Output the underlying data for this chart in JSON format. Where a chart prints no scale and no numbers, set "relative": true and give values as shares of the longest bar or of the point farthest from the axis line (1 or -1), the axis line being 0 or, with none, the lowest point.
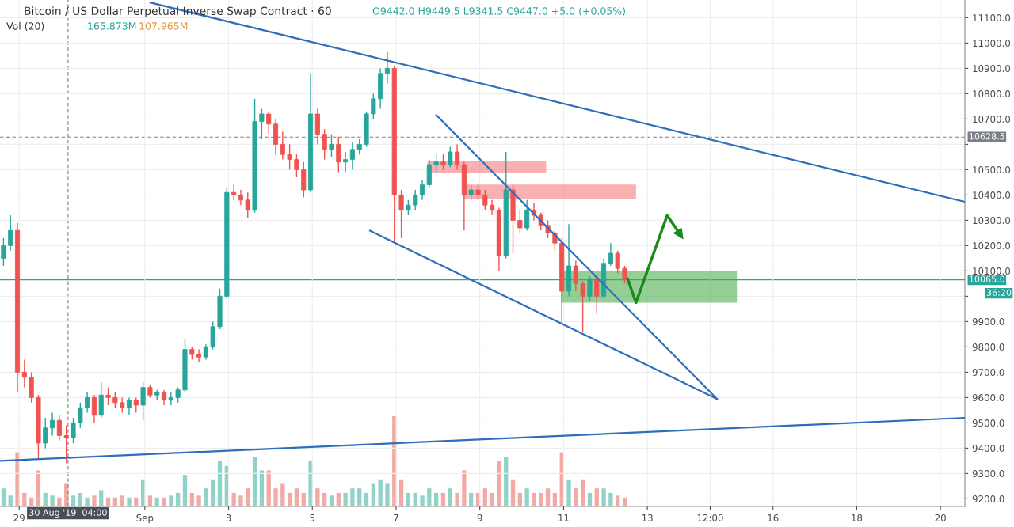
{
  "chart_data": [
    {
      "type": "candlestick",
      "title": "Bitcoin / US Dollar Perpetual Inverse Swap Contract · 60",
      "annotations": [
        "O9442.0 H9449.5 L9341.5 C9447.0 +5.0 (+0.05%)",
        "Vol (20)",
        "165.873M",
        "107.965M",
        "36:20"
      ],
      "x": [
        "2019-08-28T15:00",
        "2019-08-28T19:00",
        "2019-08-28T23:00",
        "2019-08-29T03:00",
        "2019-08-29T07:00",
        "2019-08-29T11:00",
        "2019-08-29T15:00",
        "2019-08-29T19:00",
        "2019-08-29T23:00",
        "2019-08-30T03:00",
        "2019-08-30T07:00",
        "2019-08-30T11:00",
        "2019-08-30T15:00",
        "2019-08-30T19:00",
        "2019-08-30T23:00",
        "2019-08-31T03:00",
        "2019-08-31T07:00",
        "2019-08-31T11:00",
        "2019-08-31T15:00",
        "2019-08-31T19:00",
        "2019-08-31T23:00",
        "2019-09-01T03:00",
        "2019-09-01T07:00",
        "2019-09-01T11:00",
        "2019-09-01T15:00",
        "2019-09-01T19:00",
        "2019-09-01T23:00",
        "2019-09-02T03:00",
        "2019-09-02T07:00",
        "2019-09-02T11:00",
        "2019-09-02T15:00",
        "2019-09-02T19:00",
        "2019-09-02T23:00",
        "2019-09-03T03:00",
        "2019-09-03T07:00",
        "2019-09-03T11:00",
        "2019-09-03T15:00",
        "2019-09-03T19:00",
        "2019-09-03T23:00",
        "2019-09-04T03:00",
        "2019-09-04T07:00",
        "2019-09-04T11:00",
        "2019-09-04T15:00",
        "2019-09-04T19:00",
        "2019-09-04T23:00",
        "2019-09-05T03:00",
        "2019-09-05T07:00",
        "2019-09-05T11:00",
        "2019-09-05T15:00",
        "2019-09-05T19:00",
        "2019-09-05T23:00",
        "2019-09-06T03:00",
        "2019-09-06T07:00",
        "2019-09-06T11:00",
        "2019-09-06T15:00",
        "2019-09-06T19:00",
        "2019-09-06T23:00",
        "2019-09-07T03:00",
        "2019-09-07T07:00",
        "2019-09-07T11:00",
        "2019-09-07T15:00",
        "2019-09-07T19:00",
        "2019-09-07T23:00",
        "2019-09-08T03:00",
        "2019-09-08T07:00",
        "2019-09-08T11:00",
        "2019-09-08T15:00",
        "2019-09-08T19:00",
        "2019-09-08T23:00",
        "2019-09-09T03:00",
        "2019-09-09T07:00",
        "2019-09-09T11:00",
        "2019-09-09T15:00",
        "2019-09-09T19:00",
        "2019-09-09T23:00",
        "2019-09-10T03:00",
        "2019-09-10T07:00",
        "2019-09-10T11:00",
        "2019-09-10T15:00",
        "2019-09-10T19:00",
        "2019-09-10T23:00",
        "2019-09-11T03:00",
        "2019-09-11T07:00",
        "2019-09-11T11:00",
        "2019-09-11T15:00",
        "2019-09-11T19:00",
        "2019-09-11T23:00",
        "2019-09-12T03:00",
        "2019-09-12T07:00",
        "2019-09-12T11:00"
      ],
      "ohlc": [
        [
          10150,
          10230,
          10120,
          10200
        ],
        [
          10200,
          10320,
          10180,
          10260
        ],
        [
          10260,
          10290,
          9620,
          9700
        ],
        [
          9700,
          9750,
          9640,
          9680
        ],
        [
          9680,
          9700,
          9580,
          9600
        ],
        [
          9600,
          9610,
          9360,
          9420
        ],
        [
          9420,
          9520,
          9400,
          9480
        ],
        [
          9480,
          9540,
          9450,
          9510
        ],
        [
          9510,
          9530,
          9430,
          9450
        ],
        [
          9450,
          9490,
          9340,
          9440
        ],
        [
          9440,
          9520,
          9420,
          9500
        ],
        [
          9500,
          9580,
          9480,
          9560
        ],
        [
          9560,
          9620,
          9540,
          9600
        ],
        [
          9600,
          9610,
          9500,
          9530
        ],
        [
          9530,
          9660,
          9520,
          9610
        ],
        [
          9610,
          9640,
          9570,
          9600
        ],
        [
          9600,
          9620,
          9560,
          9580
        ],
        [
          9580,
          9600,
          9540,
          9560
        ],
        [
          9560,
          9600,
          9530,
          9590
        ],
        [
          9590,
          9600,
          9540,
          9570
        ],
        [
          9570,
          9660,
          9510,
          9640
        ],
        [
          9640,
          9650,
          9600,
          9610
        ],
        [
          9610,
          9630,
          9590,
          9620
        ],
        [
          9620,
          9630,
          9570,
          9590
        ],
        [
          9590,
          9620,
          9570,
          9600
        ],
        [
          9600,
          9640,
          9580,
          9630
        ],
        [
          9630,
          9830,
          9620,
          9790
        ],
        [
          9790,
          9800,
          9750,
          9770
        ],
        [
          9770,
          9790,
          9740,
          9760
        ],
        [
          9760,
          9810,
          9750,
          9800
        ],
        [
          9800,
          9900,
          9790,
          9880
        ],
        [
          9880,
          10030,
          9870,
          10000
        ],
        [
          10000,
          10430,
          9990,
          10410
        ],
        [
          10410,
          10440,
          10380,
          10400
        ],
        [
          10400,
          10420,
          10360,
          10380
        ],
        [
          10380,
          10410,
          10310,
          10340
        ],
        [
          10340,
          10780,
          10330,
          10690
        ],
        [
          10690,
          10740,
          10620,
          10720
        ],
        [
          10720,
          10730,
          10640,
          10680
        ],
        [
          10680,
          10700,
          10560,
          10600
        ],
        [
          10600,
          10650,
          10540,
          10560
        ],
        [
          10560,
          10600,
          10500,
          10540
        ],
        [
          10540,
          10560,
          10470,
          10500
        ],
        [
          10500,
          10530,
          10390,
          10420
        ],
        [
          10420,
          10880,
          10410,
          10720
        ],
        [
          10720,
          10740,
          10600,
          10640
        ],
        [
          10640,
          10660,
          10540,
          10580
        ],
        [
          10580,
          10640,
          10550,
          10600
        ],
        [
          10600,
          10630,
          10490,
          10530
        ],
        [
          10530,
          10570,
          10490,
          10540
        ],
        [
          10540,
          10610,
          10500,
          10580
        ],
        [
          10580,
          10620,
          10560,
          10600
        ],
        [
          10600,
          10730,
          10590,
          10720
        ],
        [
          10720,
          10800,
          10700,
          10780
        ],
        [
          10780,
          10900,
          10740,
          10880
        ],
        [
          10880,
          10965,
          10840,
          10900
        ],
        [
          10900,
          10910,
          10220,
          10400
        ],
        [
          10400,
          10420,
          10230,
          10340
        ],
        [
          10340,
          10380,
          10320,
          10360
        ],
        [
          10360,
          10420,
          10340,
          10400
        ],
        [
          10400,
          10460,
          10380,
          10440
        ],
        [
          10440,
          10540,
          10430,
          10520
        ],
        [
          10520,
          10560,
          10490,
          10530
        ],
        [
          10530,
          10560,
          10500,
          10520
        ],
        [
          10520,
          10590,
          10510,
          10570
        ],
        [
          10570,
          10600,
          10500,
          10520
        ],
        [
          10520,
          10530,
          10260,
          10400
        ],
        [
          10400,
          10440,
          10380,
          10420
        ],
        [
          10420,
          10440,
          10380,
          10400
        ],
        [
          10400,
          10420,
          10340,
          10360
        ],
        [
          10360,
          10380,
          10320,
          10340
        ],
        [
          10340,
          10350,
          10100,
          10160
        ],
        [
          10160,
          10570,
          10150,
          10420
        ],
        [
          10420,
          10440,
          10170,
          10300
        ],
        [
          10300,
          10340,
          10250,
          10270
        ],
        [
          10270,
          10380,
          10260,
          10340
        ],
        [
          10340,
          10370,
          10300,
          10320
        ],
        [
          10320,
          10330,
          10260,
          10280
        ],
        [
          10280,
          10300,
          10230,
          10250
        ],
        [
          10250,
          10260,
          10180,
          10210
        ],
        [
          10210,
          10230,
          9895,
          10020
        ],
        [
          10020,
          10285,
          10000,
          10120
        ],
        [
          10120,
          10140,
          10020,
          10050
        ],
        [
          10050,
          10060,
          9860,
          10000
        ],
        [
          10000,
          10080,
          9980,
          10070
        ],
        [
          10070,
          10080,
          9930,
          10000
        ],
        [
          10000,
          10150,
          9990,
          10130
        ],
        [
          10130,
          10210,
          10120,
          10170
        ],
        [
          10170,
          10180,
          10090,
          10110
        ],
        [
          10110,
          10120,
          10050,
          10065
        ]
      ],
      "colors": [
        "#26a69a",
        "#26a69a",
        "#ef5350",
        "#ef5350",
        "#ef5350",
        "#ef5350",
        "#26a69a",
        "#26a69a",
        "#ef5350",
        "#ef5350",
        "#26a69a",
        "#26a69a",
        "#26a69a",
        "#ef5350",
        "#26a69a",
        "#ef5350",
        "#ef5350",
        "#ef5350",
        "#26a69a",
        "#ef5350",
        "#26a69a",
        "#ef5350",
        "#26a69a",
        "#ef5350",
        "#26a69a",
        "#26a69a",
        "#26a69a",
        "#ef5350",
        "#ef5350",
        "#26a69a",
        "#26a69a",
        "#26a69a",
        "#26a69a",
        "#ef5350",
        "#ef5350",
        "#ef5350",
        "#26a69a",
        "#26a69a",
        "#ef5350",
        "#ef5350",
        "#ef5350",
        "#ef5350",
        "#ef5350",
        "#ef5350",
        "#26a69a",
        "#ef5350",
        "#ef5350",
        "#26a69a",
        "#ef5350",
        "#26a69a",
        "#26a69a",
        "#26a69a",
        "#26a69a",
        "#26a69a",
        "#26a69a",
        "#26a69a",
        "#ef5350",
        "#ef5350",
        "#26a69a",
        "#26a69a",
        "#26a69a",
        "#26a69a",
        "#26a69a",
        "#ef5350",
        "#26a69a",
        "#ef5350",
        "#ef5350",
        "#26a69a",
        "#ef5350",
        "#ef5350",
        "#ef5350",
        "#ef5350",
        "#26a69a",
        "#ef5350",
        "#ef5350",
        "#26a69a",
        "#ef5350",
        "#ef5350",
        "#ef5350",
        "#ef5350",
        "#ef5350",
        "#26a69a",
        "#ef5350",
        "#ef5350",
        "#26a69a",
        "#ef5350",
        "#26a69a",
        "#26a69a",
        "#ef5350",
        "#ef5350"
      ],
      "series": [
        {
          "type": "line",
          "color": "#2f6eba",
          "x": [
            "2019-09-01T03:00",
            "2019-09-20T14:00"
          ],
          "values": [
            11160,
            10373
          ]
        },
        {
          "type": "line",
          "color": "#2f6eba",
          "x": [
            "2019-08-28T13:00",
            "2019-09-20T14:00"
          ],
          "values": [
            9350,
            9520
          ]
        },
        {
          "type": "line",
          "color": "#2f6eba",
          "x": [
            "2019-09-06T09:00",
            "2019-09-14T16:00"
          ],
          "values": [
            10259,
            9594
          ]
        },
        {
          "type": "line",
          "color": "#2f6eba",
          "x": [
            "2019-09-07T23:00",
            "2019-09-14T16:00"
          ],
          "values": [
            10716,
            9594
          ]
        },
        {
          "type": "line",
          "color": "#f47c7c",
          "x": [
            "2019-09-07T18:00",
            "2019-09-10T14:00"
          ],
          "values": [
            null,
            null
          ],
          "lower": [
            10488,
            10488
          ],
          "upper": [
            10534,
            10534
          ]
        },
        {
          "type": "line",
          "color": "#f47c7c",
          "x": [
            "2019-09-08T14:30",
            "2019-09-12T17:30"
          ],
          "values": [
            null,
            null
          ],
          "lower": [
            10384,
            10384
          ],
          "upper": [
            10441,
            10441
          ]
        },
        {
          "type": "line",
          "color": "#4caf50",
          "x": [
            "2019-09-10T22:30",
            "2019-09-15T03:20"
          ],
          "values": [
            null,
            null
          ],
          "lower": [
            9975,
            9975
          ],
          "upper": [
            10100,
            10100
          ]
        },
        {
          "type": "line",
          "color": "#1b8a1b",
          "x": [
            "2019-09-12T12:40",
            "2019-09-12T17:30",
            "2019-09-13T11:20",
            "2019-09-13T19:30"
          ],
          "values": [
            10069,
            9975,
            10319,
            10237
          ]
        }
      ],
      "ref_lines": [
        {
          "axis": "y",
          "value": 10628.5,
          "label": "10628.5",
          "color": "#7a7e87",
          "line_style": "dashed"
        },
        {
          "axis": "y",
          "value": 10065,
          "label": "10065.0",
          "color": "#26a69a",
          "line_style": "solid"
        },
        {
          "axis": "x",
          "value": "2019-08-30T04:00",
          "label": "30 Aug '19  04:00",
          "color": "#7a7e87",
          "line_style": "dashed"
        }
      ],
      "xlim": [
        "2019-08-28T13:00",
        "2019-09-20T14:00"
      ],
      "xticks": [
        {
          "value": "2019-08-29",
          "label": "29"
        },
        {
          "value": "2019-09-01",
          "label": "Sep"
        },
        {
          "value": "2019-09-03",
          "label": "3"
        },
        {
          "value": "2019-09-05",
          "label": "5"
        },
        {
          "value": "2019-09-07",
          "label": "7"
        },
        {
          "value": "2019-09-09",
          "label": "9"
        },
        {
          "value": "2019-09-11",
          "label": "11"
        },
        {
          "value": "2019-09-13",
          "label": "13"
        },
        {
          "value": "2019-09-14T12:00",
          "label": "12:00"
        },
        {
          "value": "2019-09-16",
          "label": "16"
        },
        {
          "value": "2019-09-18",
          "label": "18"
        },
        {
          "value": "2019-09-20",
          "label": "20"
        }
      ],
      "ylim": [
        9170,
        11170
      ],
      "yticks": [
        {
          "value": 9200,
          "label": "9200.0"
        },
        {
          "value": 9300,
          "label": "9300.0"
        },
        {
          "value": 9400,
          "label": "9400.0"
        },
        {
          "value": 9500,
          "label": "9500.0"
        },
        {
          "value": 9600,
          "label": "9600.0"
        },
        {
          "value": 9700,
          "label": "9700.0"
        },
        {
          "value": 9800,
          "label": "9800.0"
        },
        {
          "value": 9900,
          "label": "9900.0"
        },
        {
          "value": 10000,
          "label": null
        },
        {
          "value": 10100,
          "label": "10100.0"
        },
        {
          "value": 10200,
          "label": "10200.0"
        },
        {
          "value": 10300,
          "label": "10300.0"
        },
        {
          "value": 10400,
          "label": "10400.0"
        },
        {
          "value": 10500,
          "label": "10500.0"
        },
        {
          "value": 10600,
          "label": null
        },
        {
          "value": 10700,
          "label": "10700.0"
        },
        {
          "value": 10800,
          "label": "10800.0"
        },
        {
          "value": 10900,
          "label": "10900.0"
        },
        {
          "value": 11000,
          "label": "11000.0"
        },
        {
          "value": 11100,
          "label": "11100.0"
        }
      ],
      "grid": true
    },
    {
      "type": "bar",
      "relative": true,
      "tick_labels": false,
      "x": [
        "2019-08-28T15:00",
        "2019-08-28T19:00",
        "2019-08-28T23:00",
        "2019-08-29T03:00",
        "2019-08-29T07:00",
        "2019-08-29T11:00",
        "2019-08-29T15:00",
        "2019-08-29T19:00",
        "2019-08-29T23:00",
        "2019-08-30T03:00",
        "2019-08-30T07:00",
        "2019-08-30T11:00",
        "2019-08-30T15:00",
        "2019-08-30T19:00",
        "2019-08-30T23:00",
        "2019-08-31T03:00",
        "2019-08-31T07:00",
        "2019-08-31T11:00",
        "2019-08-31T15:00",
        "2019-08-31T19:00",
        "2019-08-31T23:00",
        "2019-09-01T03:00",
        "2019-09-01T07:00",
        "2019-09-01T11:00",
        "2019-09-01T15:00",
        "2019-09-01T19:00",
        "2019-09-01T23:00",
        "2019-09-02T03:00",
        "2019-09-02T07:00",
        "2019-09-02T11:00",
        "2019-09-02T15:00",
        "2019-09-02T19:00",
        "2019-09-02T23:00",
        "2019-09-03T03:00",
        "2019-09-03T07:00",
        "2019-09-03T11:00",
        "2019-09-03T15:00",
        "2019-09-03T19:00",
        "2019-09-03T23:00",
        "2019-09-04T03:00",
        "2019-09-04T07:00",
        "2019-09-04T11:00",
        "2019-09-04T15:00",
        "2019-09-04T19:00",
        "2019-09-04T23:00",
        "2019-09-05T03:00",
        "2019-09-05T07:00",
        "2019-09-05T11:00",
        "2019-09-05T15:00",
        "2019-09-05T19:00",
        "2019-09-05T23:00",
        "2019-09-06T03:00",
        "2019-09-06T07:00",
        "2019-09-06T11:00",
        "2019-09-06T15:00",
        "2019-09-06T19:00",
        "2019-09-06T23:00",
        "2019-09-07T03:00",
        "2019-09-07T07:00",
        "2019-09-07T11:00",
        "2019-09-07T15:00",
        "2019-09-07T19:00",
        "2019-09-07T23:00",
        "2019-09-08T03:00",
        "2019-09-08T07:00",
        "2019-09-08T11:00",
        "2019-09-08T15:00",
        "2019-09-08T19:00",
        "2019-09-08T23:00",
        "2019-09-09T03:00",
        "2019-09-09T07:00",
        "2019-09-09T11:00",
        "2019-09-09T15:00",
        "2019-09-09T19:00",
        "2019-09-09T23:00",
        "2019-09-10T03:00",
        "2019-09-10T07:00",
        "2019-09-10T11:00",
        "2019-09-10T15:00",
        "2019-09-10T19:00",
        "2019-09-10T23:00",
        "2019-09-11T03:00",
        "2019-09-11T07:00",
        "2019-09-11T11:00",
        "2019-09-11T15:00",
        "2019-09-11T19:00",
        "2019-09-11T23:00",
        "2019-09-12T03:00",
        "2019-09-12T07:00",
        "2019-09-12T11:00"
      ],
      "xlim": [
        "2019-08-28T13:00",
        "2019-09-20T14:00"
      ],
      "values": [
        0.2,
        0.12,
        0.6,
        0.15,
        0.1,
        0.4,
        0.15,
        0.12,
        0.1,
        0.25,
        0.12,
        0.15,
        0.1,
        0.12,
        0.18,
        0.1,
        0.1,
        0.12,
        0.1,
        0.1,
        0.3,
        0.12,
        0.1,
        0.1,
        0.12,
        0.15,
        0.35,
        0.15,
        0.12,
        0.2,
        0.3,
        0.5,
        0.45,
        0.15,
        0.12,
        0.2,
        0.55,
        0.4,
        0.4,
        0.2,
        0.25,
        0.15,
        0.2,
        0.15,
        0.5,
        0.2,
        0.15,
        0.12,
        0.15,
        0.15,
        0.2,
        0.2,
        0.15,
        0.25,
        0.3,
        0.25,
        1.0,
        0.3,
        0.15,
        0.15,
        0.12,
        0.2,
        0.15,
        0.15,
        0.2,
        0.15,
        0.4,
        0.15,
        0.15,
        0.2,
        0.15,
        0.5,
        0.55,
        0.3,
        0.15,
        0.2,
        0.15,
        0.15,
        0.2,
        0.15,
        0.6,
        0.3,
        0.2,
        0.3,
        0.15,
        0.2,
        0.2,
        0.15,
        0.12,
        0.1
      ],
      "colors": [
        "#8fd3c8",
        "#8fd3c8",
        "#f4a8a4",
        "#f4a8a4",
        "#f4a8a4",
        "#f4a8a4",
        "#8fd3c8",
        "#8fd3c8",
        "#f4a8a4",
        "#f4a8a4",
        "#8fd3c8",
        "#8fd3c8",
        "#8fd3c8",
        "#f4a8a4",
        "#8fd3c8",
        "#f4a8a4",
        "#f4a8a4",
        "#f4a8a4",
        "#8fd3c8",
        "#f4a8a4",
        "#8fd3c8",
        "#f4a8a4",
        "#8fd3c8",
        "#f4a8a4",
        "#8fd3c8",
        "#8fd3c8",
        "#8fd3c8",
        "#f4a8a4",
        "#f4a8a4",
        "#8fd3c8",
        "#8fd3c8",
        "#8fd3c8",
        "#8fd3c8",
        "#f4a8a4",
        "#f4a8a4",
        "#f4a8a4",
        "#8fd3c8",
        "#8fd3c8",
        "#f4a8a4",
        "#f4a8a4",
        "#f4a8a4",
        "#f4a8a4",
        "#f4a8a4",
        "#f4a8a4",
        "#8fd3c8",
        "#f4a8a4",
        "#f4a8a4",
        "#8fd3c8",
        "#f4a8a4",
        "#8fd3c8",
        "#8fd3c8",
        "#8fd3c8",
        "#8fd3c8",
        "#8fd3c8",
        "#8fd3c8",
        "#8fd3c8",
        "#f4a8a4",
        "#f4a8a4",
        "#8fd3c8",
        "#8fd3c8",
        "#8fd3c8",
        "#8fd3c8",
        "#8fd3c8",
        "#f4a8a4",
        "#8fd3c8",
        "#f4a8a4",
        "#f4a8a4",
        "#8fd3c8",
        "#f4a8a4",
        "#f4a8a4",
        "#f4a8a4",
        "#f4a8a4",
        "#8fd3c8",
        "#f4a8a4",
        "#f4a8a4",
        "#8fd3c8",
        "#f4a8a4",
        "#f4a8a4",
        "#f4a8a4",
        "#f4a8a4",
        "#f4a8a4",
        "#8fd3c8",
        "#f4a8a4",
        "#f4a8a4",
        "#8fd3c8",
        "#f4a8a4",
        "#8fd3c8",
        "#8fd3c8",
        "#f4a8a4",
        "#f4a8a4"
      ]
    }
  ]
}
